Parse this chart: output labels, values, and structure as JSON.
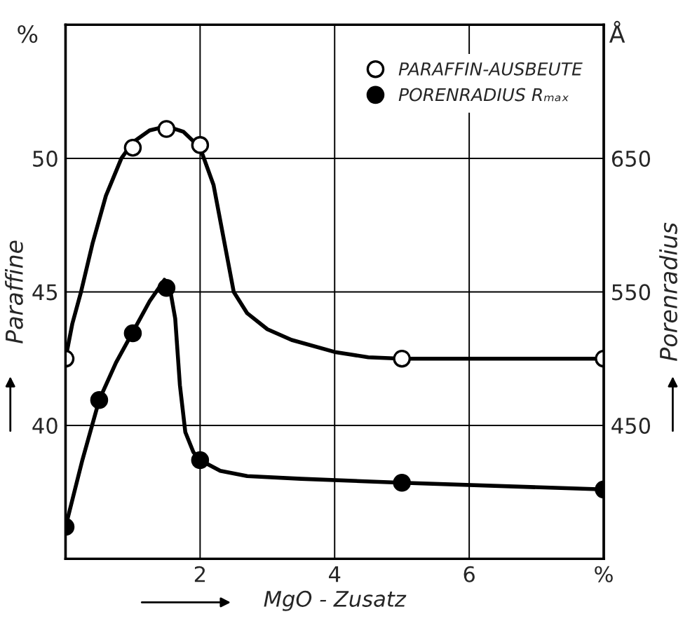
{
  "chart_data": {
    "type": "line",
    "xlabel": "MgO - Zusatz",
    "ylabel": "Paraffine",
    "y2label": "Porenradius",
    "annotations": [
      "%",
      "Å"
    ],
    "xlim": [
      0,
      8
    ],
    "xticks": [
      2,
      4,
      6,
      {
        "value": 8,
        "label": "%"
      }
    ],
    "ylim": [
      35,
      55
    ],
    "yticks": [
      40,
      45,
      50
    ],
    "y2lim": [
      350,
      750
    ],
    "y2ticks": [
      450,
      550,
      650
    ],
    "grid": true,
    "legend": "top right",
    "series": [
      {
        "color": "#000000",
        "axis": "y",
        "x": [
          0,
          0.1,
          0.23,
          0.4,
          0.6,
          0.83,
          1.0,
          1.25,
          1.5,
          1.75,
          2.0,
          2.2,
          2.35,
          2.5,
          2.7,
          3.0,
          3.36,
          4.0,
          4.5,
          5,
          8
        ],
        "values": [
          42.5,
          43.8,
          45,
          46.8,
          48.6,
          50,
          50.6,
          51.05,
          51.2,
          51.0,
          50.4,
          49,
          47,
          45,
          44.2,
          43.6,
          43.2,
          42.75,
          42.55,
          42.5,
          42.5
        ]
      },
      {
        "color": "#000000",
        "axis": "y2",
        "x": [
          0,
          0.25,
          0.5,
          0.75,
          1.0,
          1.25,
          1.47,
          1.55,
          1.63,
          1.7,
          1.78,
          1.9,
          2.0,
          2.3,
          2.7,
          3.5,
          5,
          8
        ],
        "values": [
          374,
          424,
          469,
          497,
          520,
          543,
          559,
          553,
          530,
          480,
          445,
          430,
          424,
          416,
          412,
          410,
          407,
          402
        ]
      },
      {
        "type": "scatter",
        "name": "PARAFFIN-AUSBEUTE",
        "color": "#ffffff",
        "marker": "circle",
        "axis": "y",
        "x": [
          0,
          1.0,
          1.5,
          2.0,
          5,
          8
        ],
        "values": [
          42.5,
          50.4,
          51.1,
          50.5,
          42.5,
          42.5
        ]
      },
      {
        "type": "scatter",
        "name": "PORENRADIUS Rₘₐₓ",
        "color": "#000000",
        "marker": "circle",
        "axis": "y2",
        "x": [
          0,
          0.5,
          1.0,
          1.5,
          2.0,
          5,
          8
        ],
        "values": [
          374,
          469,
          519,
          553,
          424,
          407,
          402
        ]
      }
    ]
  }
}
